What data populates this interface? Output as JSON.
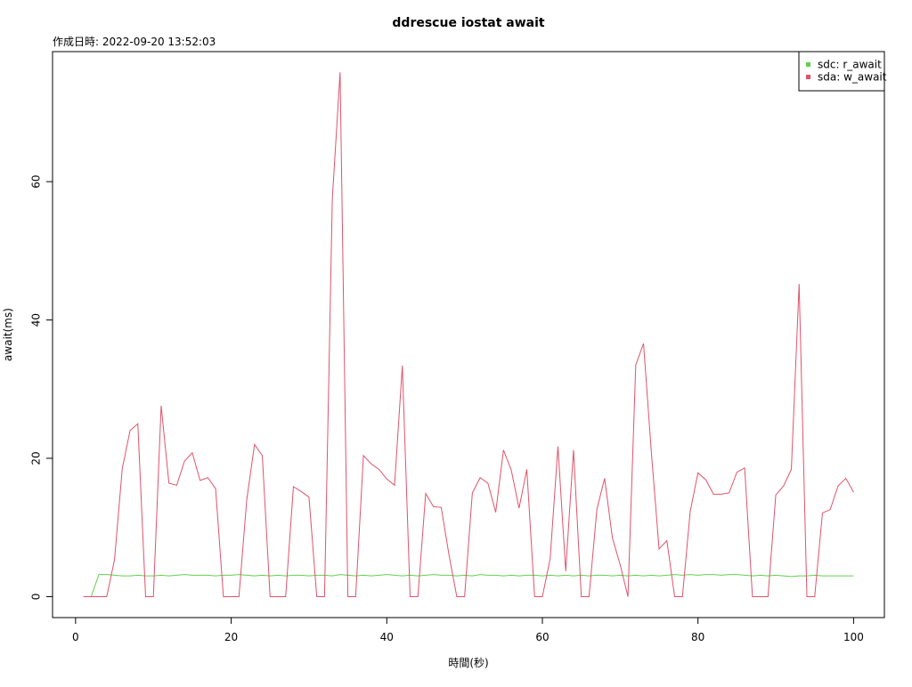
{
  "chart_data": {
    "type": "line",
    "title": "ddrescue iostat await",
    "subtitle": "作成日時: 2022-09-20 13:52:03",
    "x_label": "時間(秒)",
    "y_label": "await(ms)",
    "x": [
      1,
      2,
      3,
      4,
      5,
      6,
      7,
      8,
      9,
      10,
      11,
      12,
      13,
      14,
      15,
      16,
      17,
      18,
      19,
      20,
      21,
      22,
      23,
      24,
      25,
      26,
      27,
      28,
      29,
      30,
      31,
      32,
      33,
      34,
      35,
      36,
      37,
      38,
      39,
      40,
      41,
      42,
      43,
      44,
      45,
      46,
      47,
      48,
      49,
      50,
      51,
      52,
      53,
      54,
      55,
      56,
      57,
      58,
      59,
      60,
      61,
      62,
      63,
      64,
      65,
      66,
      67,
      68,
      69,
      70,
      71,
      72,
      73,
      74,
      75,
      76,
      77,
      78,
      79,
      80,
      81,
      82,
      83,
      84,
      85,
      86,
      87,
      88,
      89,
      90,
      91,
      92,
      93,
      94,
      95,
      96,
      97,
      98,
      99,
      100
    ],
    "series": [
      {
        "name": "sdc: r_await",
        "color": "#61D04F",
        "values": [
          0,
          0,
          3.2,
          3.2,
          3.1,
          3.0,
          3.0,
          3.1,
          3.0,
          3.0,
          3.1,
          3.0,
          3.1,
          3.2,
          3.1,
          3.1,
          3.1,
          3.0,
          3.1,
          3.1,
          3.2,
          3.1,
          3.0,
          3.1,
          3.0,
          3.1,
          3.0,
          3.1,
          3.1,
          3.0,
          3.1,
          3.1,
          3.0,
          3.2,
          3.1,
          3.0,
          3.1,
          3.0,
          3.1,
          3.2,
          3.1,
          3.0,
          3.1,
          3.0,
          3.1,
          3.2,
          3.1,
          3.1,
          3.0,
          3.1,
          3.0,
          3.2,
          3.1,
          3.1,
          3.0,
          3.1,
          3.0,
          3.1,
          3.1,
          3.0,
          3.1,
          3.0,
          3.1,
          3.0,
          3.1,
          3.0,
          3.1,
          3.1,
          3.0,
          3.1,
          3.0,
          3.1,
          3.0,
          3.1,
          3.0,
          3.1,
          3.2,
          3.1,
          3.2,
          3.1,
          3.2,
          3.2,
          3.1,
          3.2,
          3.2,
          3.1,
          3.0,
          3.1,
          3.0,
          3.1,
          3.0,
          2.9,
          3.0,
          3.0,
          3.1,
          3.0,
          3.0,
          3.0,
          3.0,
          3.0
        ]
      },
      {
        "name": "sda: w_await",
        "color": "#DF536B",
        "values": [
          0,
          0,
          0,
          0,
          5.3,
          18.5,
          24,
          25,
          0,
          0,
          27.6,
          16.4,
          16.1,
          19.6,
          20.8,
          16.8,
          17.2,
          15.6,
          0,
          0,
          0,
          14,
          22,
          20.4,
          0,
          0,
          0,
          15.9,
          15.2,
          14.4,
          0,
          0,
          57.5,
          75.8,
          0,
          0,
          20.4,
          19.2,
          18.4,
          17,
          16.1,
          33.4,
          0,
          0,
          14.9,
          13,
          12.9,
          6,
          0,
          0,
          15,
          17.2,
          16.4,
          12.2,
          21.2,
          18.3,
          12.8,
          18.4,
          0,
          0,
          5.5,
          21.7,
          3.7,
          21.2,
          0,
          0,
          12.6,
          17.1,
          8.5,
          4.6,
          0,
          33.5,
          36.6,
          21,
          6.9,
          8.1,
          0,
          0,
          12.3,
          17.9,
          16.9,
          14.8,
          14.8,
          15,
          18,
          18.6,
          0,
          0,
          0,
          14.7,
          16,
          18.4,
          45.2,
          0,
          0,
          12.1,
          12.6,
          16,
          17.1,
          15.1
        ]
      }
    ],
    "xlim": [
      -2.96,
      103.96
    ],
    "ylim": [
      -3.03,
      78.8
    ],
    "xticks": [
      0,
      20,
      40,
      60,
      80,
      100
    ],
    "yticks": [
      0,
      20,
      40,
      60
    ],
    "legend": "topright"
  }
}
